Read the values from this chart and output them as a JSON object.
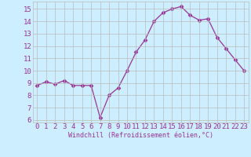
{
  "x": [
    0,
    1,
    2,
    3,
    4,
    5,
    6,
    7,
    8,
    9,
    10,
    11,
    12,
    13,
    14,
    15,
    16,
    17,
    18,
    19,
    20,
    21,
    22,
    23
  ],
  "y": [
    8.8,
    9.1,
    8.9,
    9.2,
    8.8,
    8.8,
    8.8,
    6.2,
    8.0,
    8.6,
    10.0,
    11.5,
    12.5,
    14.0,
    14.7,
    15.0,
    15.2,
    14.5,
    14.1,
    14.2,
    12.7,
    11.8,
    10.9,
    10.0
  ],
  "line_color": "#993399",
  "marker": "D",
  "marker_size": 2.5,
  "bg_color": "#cceeff",
  "grid_color": "#bbbbbb",
  "xlabel": "Windchill (Refroidissement éolien,°C)",
  "tick_color": "#993399",
  "ylim": [
    5.8,
    15.6
  ],
  "xlim": [
    -0.5,
    23.5
  ],
  "yticks": [
    6,
    7,
    8,
    9,
    10,
    11,
    12,
    13,
    14,
    15
  ],
  "xticks": [
    0,
    1,
    2,
    3,
    4,
    5,
    6,
    7,
    8,
    9,
    10,
    11,
    12,
    13,
    14,
    15,
    16,
    17,
    18,
    19,
    20,
    21,
    22,
    23
  ],
  "label_fontsize": 6,
  "tick_fontsize": 6.5
}
